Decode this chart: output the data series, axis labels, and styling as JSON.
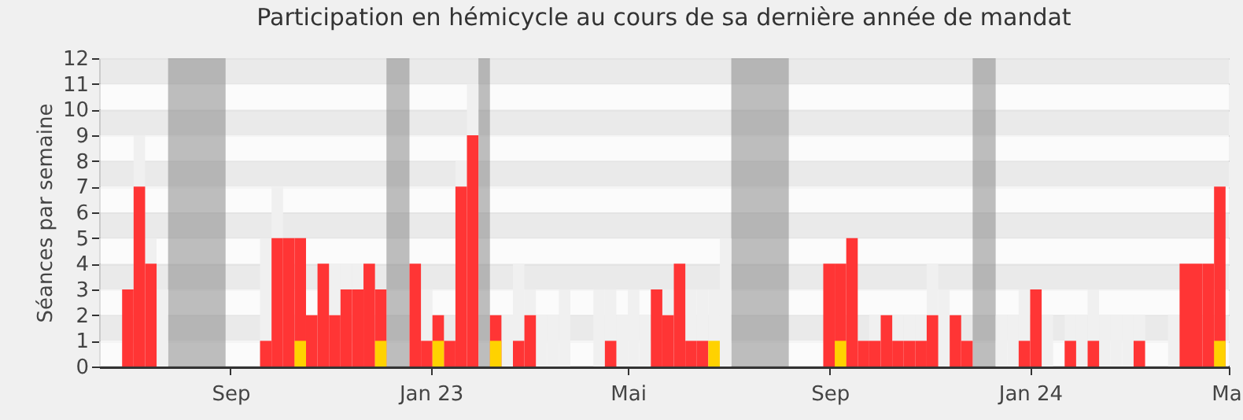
{
  "chart_data": {
    "type": "bar",
    "title": "Participation en hémicycle au cours de sa dernière année de mandat",
    "ylabel": "Séances par semaine",
    "x": [
      "2022-06-27",
      "2022-07-04",
      "2022-07-11",
      "2022-07-18",
      "2022-09-19",
      "2022-09-26",
      "2022-10-03",
      "2022-10-10",
      "2022-10-17",
      "2022-10-24",
      "2022-10-31",
      "2022-11-07",
      "2022-11-14",
      "2022-11-21",
      "2022-11-28",
      "2022-12-19",
      "2022-12-26",
      "2023-01-02",
      "2023-01-09",
      "2023-01-16",
      "2023-01-23",
      "2023-02-06",
      "2023-02-13",
      "2023-02-20",
      "2023-02-27",
      "2023-03-06",
      "2023-03-13",
      "2023-03-20",
      "2023-04-10",
      "2023-04-17",
      "2023-04-24",
      "2023-05-01",
      "2023-05-08",
      "2023-05-15",
      "2023-05-22",
      "2023-05-29",
      "2023-06-05",
      "2023-06-12",
      "2023-06-19",
      "2023-06-26",
      "2023-08-28",
      "2023-09-04",
      "2023-09-11",
      "2023-09-18",
      "2023-09-25",
      "2023-10-02",
      "2023-10-09",
      "2023-10-16",
      "2023-10-23",
      "2023-10-30",
      "2023-11-06",
      "2023-11-13",
      "2023-11-20",
      "2023-12-11",
      "2023-12-18",
      "2023-12-25",
      "2024-01-01",
      "2024-01-08",
      "2024-01-22",
      "2024-01-29",
      "2024-02-05",
      "2024-02-12",
      "2024-02-19",
      "2024-02-26",
      "2024-03-04",
      "2024-03-25",
      "2024-04-01",
      "2024-04-08",
      "2024-04-15",
      "2024-04-22"
    ],
    "series": [
      {
        "color": "#f0f0f0",
        "values": [
          null,
          9,
          5,
          3,
          5,
          7,
          null,
          null,
          null,
          null,
          4,
          4,
          4,
          null,
          null,
          null,
          3,
          null,
          null,
          8,
          11,
          null,
          2,
          4,
          3,
          2,
          2,
          3,
          3,
          3,
          2,
          3,
          2,
          null,
          3,
          null,
          3,
          3,
          3,
          5,
          null,
          null,
          null,
          null,
          2,
          null,
          2,
          2,
          2,
          4,
          3,
          null,
          null,
          2,
          2,
          3,
          null,
          2,
          2,
          2,
          3,
          2,
          2,
          2,
          2,
          2,
          null,
          null,
          null,
          null
        ]
      },
      {
        "color": "#ff3535",
        "values": [
          3,
          7,
          4,
          null,
          1,
          5,
          5,
          5,
          2,
          4,
          2,
          3,
          3,
          4,
          3,
          4,
          1,
          2,
          1,
          7,
          9,
          2,
          null,
          1,
          2,
          null,
          null,
          null,
          null,
          1,
          null,
          null,
          null,
          3,
          2,
          4,
          1,
          1,
          null,
          null,
          4,
          4,
          5,
          1,
          1,
          2,
          1,
          1,
          1,
          2,
          null,
          2,
          1,
          null,
          null,
          1,
          3,
          null,
          1,
          null,
          1,
          null,
          null,
          null,
          1,
          null,
          4,
          4,
          4,
          7
        ]
      },
      {
        "color": "#ffd200",
        "values": [
          null,
          null,
          null,
          null,
          null,
          null,
          null,
          1,
          null,
          null,
          null,
          null,
          null,
          null,
          1,
          null,
          null,
          1,
          null,
          null,
          null,
          1,
          null,
          null,
          null,
          null,
          null,
          null,
          null,
          null,
          null,
          null,
          null,
          null,
          null,
          null,
          null,
          null,
          1,
          null,
          null,
          1,
          null,
          null,
          null,
          null,
          null,
          null,
          null,
          null,
          null,
          null,
          null,
          null,
          null,
          null,
          null,
          null,
          null,
          null,
          null,
          null,
          null,
          null,
          null,
          null,
          null,
          null,
          null,
          1
        ]
      }
    ],
    "bands": [
      {
        "axis": "x",
        "from": "2022-07-25",
        "to": "2022-08-29",
        "color": "#808080"
      },
      {
        "axis": "x",
        "from": "2022-12-05",
        "to": "2022-12-19",
        "color": "#808080"
      },
      {
        "axis": "x",
        "from": "2023-01-30",
        "to": "2023-02-06",
        "color": "#808080"
      },
      {
        "axis": "x",
        "from": "2023-07-03",
        "to": "2023-08-07",
        "color": "#808080"
      },
      {
        "axis": "x",
        "from": "2023-11-27",
        "to": "2023-12-11",
        "color": "#808080"
      }
    ],
    "xlim": [
      "2022-06-13",
      "2024-05-01"
    ],
    "xticks": [
      {
        "value": "2022-09-01",
        "label": "Sep"
      },
      {
        "value": "2023-01-01",
        "label": "Jan 23"
      },
      {
        "value": "2023-05-01",
        "label": "Mai"
      },
      {
        "value": "2023-09-01",
        "label": "Sep"
      },
      {
        "value": "2024-01-01",
        "label": "Jan 24"
      },
      {
        "value": "2024-05-01",
        "label": "Mai"
      }
    ],
    "ylim": [
      0,
      12
    ],
    "yticks": [
      0,
      1,
      2,
      3,
      4,
      5,
      6,
      7,
      8,
      9,
      10,
      11,
      12
    ],
    "grid": "y"
  }
}
